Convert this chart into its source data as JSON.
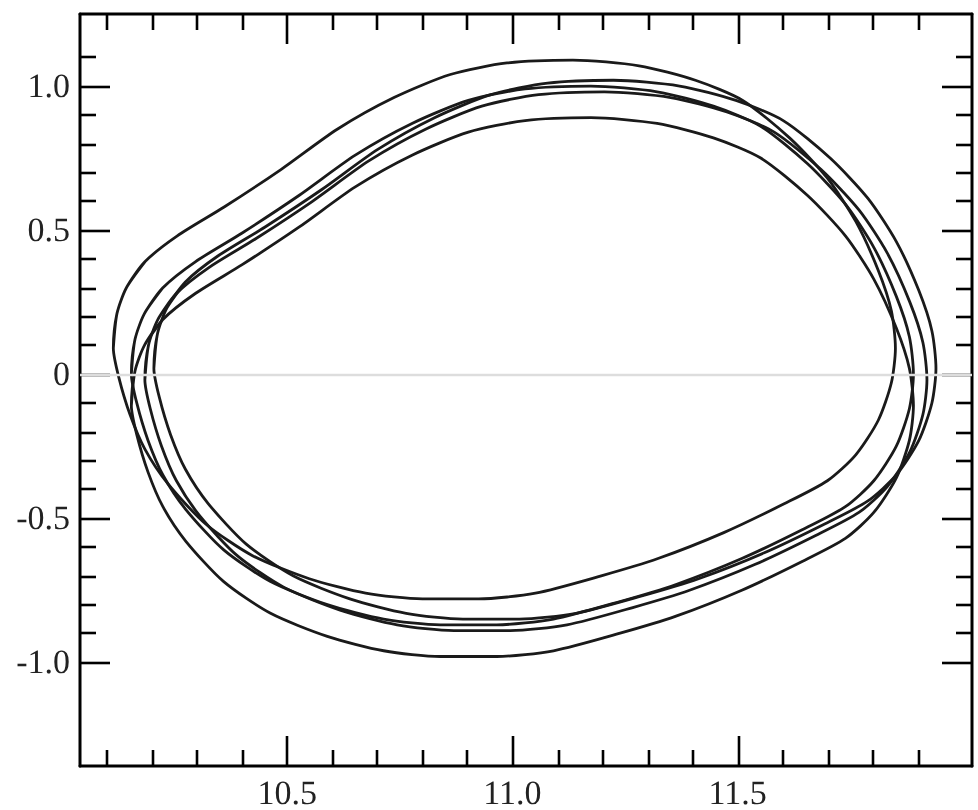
{
  "chart_data": {
    "type": "line",
    "marker": "none",
    "xlim": [
      10.04,
      12.02
    ],
    "xticks": [
      {
        "value": 10.1,
        "label": null
      },
      {
        "value": 10.2,
        "label": null
      },
      {
        "value": 10.3,
        "label": null
      },
      {
        "value": 10.4,
        "label": null
      },
      10.5,
      {
        "value": 10.6,
        "label": null
      },
      {
        "value": 10.7,
        "label": null
      },
      {
        "value": 10.8,
        "label": null
      },
      {
        "value": 10.9,
        "label": null
      },
      {
        "value": 11,
        "label": "11.0"
      },
      {
        "value": 11.1,
        "label": null
      },
      {
        "value": 11.2,
        "label": null
      },
      {
        "value": 11.3,
        "label": null
      },
      {
        "value": 11.4,
        "label": null
      },
      11.5,
      {
        "value": 11.6,
        "label": null
      },
      {
        "value": 11.7,
        "label": null
      },
      {
        "value": 11.8,
        "label": null
      },
      {
        "value": 11.9,
        "label": null
      }
    ],
    "ylim": [
      -1.36,
      1.25
    ],
    "yticks": [
      {
        "value": -1,
        "label": "-1.0"
      },
      {
        "value": -0.9,
        "label": null
      },
      {
        "value": -0.8,
        "label": null
      },
      {
        "value": -0.7,
        "label": null
      },
      {
        "value": -0.6,
        "label": null
      },
      -0.5,
      {
        "value": -0.4,
        "label": null
      },
      {
        "value": -0.3,
        "label": null
      },
      {
        "value": -0.2,
        "label": null
      },
      {
        "value": -0.1,
        "label": null
      },
      0,
      {
        "value": 0.1,
        "label": null
      },
      {
        "value": 0.2,
        "label": null
      },
      {
        "value": 0.3,
        "label": null
      },
      {
        "value": 0.4,
        "label": null
      },
      0.5,
      {
        "value": 0.6,
        "label": null
      },
      {
        "value": 0.7,
        "label": null
      },
      {
        "value": 0.8,
        "label": null
      },
      {
        "value": 0.9,
        "label": null
      },
      {
        "value": 1,
        "label": "1.0"
      },
      {
        "value": 1.1,
        "label": null
      }
    ],
    "ref_lines": [
      {
        "axis": "y",
        "value": 0,
        "color": "#dddddd"
      }
    ],
    "series": [
      {
        "color": "#1a1a1a",
        "x": [
          10.114,
          10.122,
          10.143,
          10.184,
          10.256,
          10.36,
          10.486,
          10.611,
          10.737,
          10.862,
          10.988,
          11.134,
          11.281,
          11.406,
          11.511,
          11.615,
          11.699,
          11.762,
          11.812,
          11.841,
          11.85,
          11.841,
          11.812,
          11.762,
          11.699,
          11.603,
          11.469,
          11.323,
          11.197,
          11.051,
          10.925,
          10.8,
          10.674,
          10.549,
          10.423,
          10.319,
          10.235,
          10.184,
          10.151,
          10.126,
          10.114,
          10.122,
          10.143,
          10.184
        ],
        "values": [
          0.09,
          0.21,
          0.3,
          0.39,
          0.48,
          0.58,
          0.71,
          0.85,
          0.96,
          1.04,
          1.08,
          1.09,
          1.07,
          1.02,
          0.95,
          0.82,
          0.68,
          0.53,
          0.36,
          0.22,
          0.09,
          -0.03,
          -0.16,
          -0.28,
          -0.37,
          -0.45,
          -0.55,
          -0.64,
          -0.7,
          -0.76,
          -0.78,
          -0.78,
          -0.76,
          -0.71,
          -0.63,
          -0.52,
          -0.38,
          -0.26,
          -0.14,
          -0.01,
          0.09,
          0.21,
          0.3,
          0.39
        ]
      },
      {
        "color": "#1a1a1a",
        "x": [
          10.204,
          10.212,
          10.233,
          10.274,
          10.346,
          10.45,
          10.576,
          10.701,
          10.827,
          10.952,
          11.078,
          11.224,
          11.371,
          11.496,
          11.601,
          11.705,
          11.789,
          11.852,
          11.902,
          11.931,
          11.94,
          11.931,
          11.902,
          11.852,
          11.789,
          11.693,
          11.559,
          11.413,
          11.287,
          11.141,
          11.015,
          10.89,
          10.764,
          10.639,
          10.513,
          10.409,
          10.325,
          10.274,
          10.241,
          10.216,
          10.204,
          10.212,
          10.233,
          10.274
        ],
        "values": [
          0.02,
          0.14,
          0.23,
          0.32,
          0.41,
          0.51,
          0.64,
          0.78,
          0.89,
          0.97,
          1.01,
          1.02,
          1.0,
          0.95,
          0.88,
          0.75,
          0.61,
          0.46,
          0.29,
          0.15,
          0.02,
          -0.1,
          -0.23,
          -0.35,
          -0.44,
          -0.52,
          -0.62,
          -0.71,
          -0.77,
          -0.83,
          -0.85,
          -0.85,
          -0.83,
          -0.78,
          -0.7,
          -0.59,
          -0.45,
          -0.33,
          -0.21,
          -0.08,
          0.02,
          0.14,
          0.23,
          0.32
        ]
      },
      {
        "color": "#1a1a1a",
        "x": [
          10.154,
          10.162,
          10.183,
          10.224,
          10.296,
          10.4,
          10.526,
          10.651,
          10.777,
          10.902,
          11.028,
          11.174,
          11.321,
          11.446,
          11.551,
          11.655,
          11.739,
          11.802,
          11.852,
          11.881,
          11.89,
          11.881,
          11.852,
          11.802,
          11.739,
          11.643,
          11.509,
          11.363,
          11.237,
          11.091,
          10.965,
          10.84,
          10.714,
          10.589,
          10.463,
          10.359,
          10.275,
          10.224,
          10.191,
          10.166,
          10.154,
          10.162,
          10.183,
          10.224
        ],
        "values": [
          0.0,
          0.12,
          0.21,
          0.3,
          0.39,
          0.49,
          0.62,
          0.76,
          0.87,
          0.95,
          0.99,
          1.0,
          0.98,
          0.93,
          0.86,
          0.73,
          0.59,
          0.44,
          0.27,
          0.13,
          0.0,
          -0.12,
          -0.25,
          -0.37,
          -0.46,
          -0.54,
          -0.64,
          -0.73,
          -0.79,
          -0.85,
          -0.87,
          -0.87,
          -0.85,
          -0.8,
          -0.72,
          -0.61,
          -0.47,
          -0.35,
          -0.23,
          -0.1,
          0.0,
          0.12,
          0.21,
          0.3
        ]
      },
      {
        "color": "#1a1a1a",
        "x": [
          10.184,
          10.192,
          10.213,
          10.254,
          10.326,
          10.43,
          10.556,
          10.681,
          10.807,
          10.932,
          11.058,
          11.204,
          11.351,
          11.476,
          11.581,
          11.685,
          11.769,
          11.832,
          11.882,
          11.911,
          11.92,
          11.911,
          11.882,
          11.832,
          11.769,
          11.673,
          11.539,
          11.393,
          11.267,
          11.121,
          10.995,
          10.87,
          10.744,
          10.619,
          10.493,
          10.389,
          10.305,
          10.254,
          10.221,
          10.196,
          10.184,
          10.192,
          10.213,
          10.254
        ],
        "values": [
          -0.02,
          0.1,
          0.19,
          0.28,
          0.37,
          0.47,
          0.6,
          0.74,
          0.85,
          0.93,
          0.97,
          0.98,
          0.96,
          0.91,
          0.84,
          0.71,
          0.57,
          0.42,
          0.25,
          0.11,
          -0.02,
          -0.14,
          -0.27,
          -0.39,
          -0.48,
          -0.56,
          -0.66,
          -0.75,
          -0.81,
          -0.87,
          -0.89,
          -0.89,
          -0.87,
          -0.82,
          -0.74,
          -0.63,
          -0.49,
          -0.37,
          -0.25,
          -0.12,
          -0.02,
          0.1,
          0.19,
          0.28
        ]
      },
      {
        "color": "#1a1a1a",
        "x": [
          10.154,
          10.162,
          10.183,
          10.224,
          10.296,
          10.4,
          10.526,
          10.651,
          10.777,
          10.902,
          11.028,
          11.174,
          11.321,
          11.446,
          11.551,
          11.655,
          11.739,
          11.802,
          11.852,
          11.881,
          11.89,
          11.881,
          11.852,
          11.802,
          11.739,
          11.643,
          11.509,
          11.363,
          11.237,
          11.091,
          10.965,
          10.84,
          10.714,
          10.589,
          10.463,
          10.359,
          10.275,
          10.224,
          10.191,
          10.166,
          10.154,
          10.162,
          10.183,
          10.224
        ],
        "values": [
          -0.11,
          0.01,
          0.1,
          0.19,
          0.28,
          0.38,
          0.51,
          0.65,
          0.76,
          0.84,
          0.88,
          0.89,
          0.87,
          0.82,
          0.75,
          0.62,
          0.48,
          0.33,
          0.16,
          0.02,
          -0.11,
          -0.23,
          -0.36,
          -0.48,
          -0.57,
          -0.65,
          -0.75,
          -0.84,
          -0.9,
          -0.96,
          -0.98,
          -0.98,
          -0.96,
          -0.91,
          -0.83,
          -0.72,
          -0.58,
          -0.46,
          -0.34,
          -0.21,
          -0.11,
          0.01,
          0.1,
          0.19
        ]
      }
    ]
  }
}
